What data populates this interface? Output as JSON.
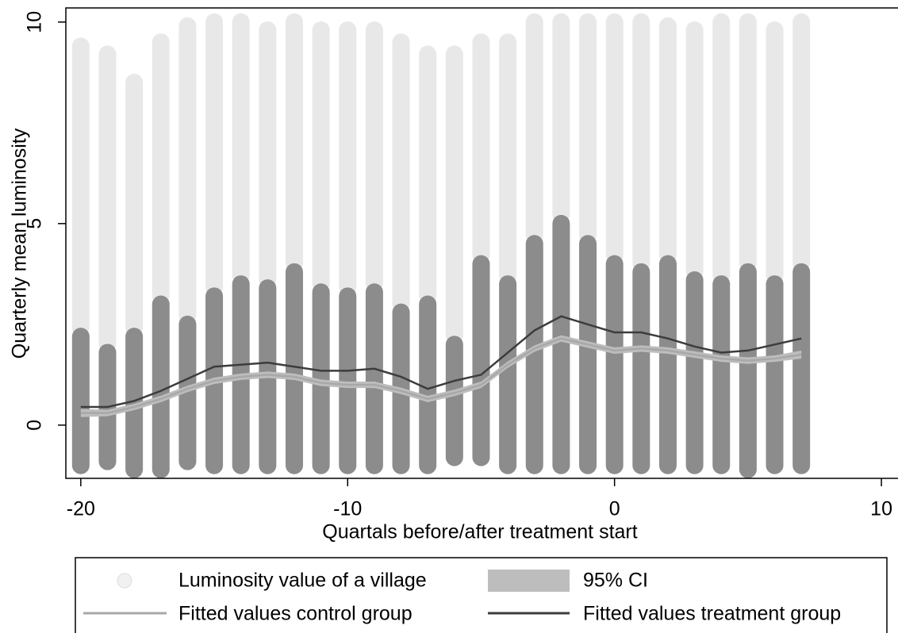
{
  "chart_data": {
    "type": "scatter",
    "x_label": "Quartals before/after treatment start",
    "y_label": "Quarterly mean luminosity",
    "xlim": [
      -20.56,
      10.8
    ],
    "ylim": [
      -1.32,
      10.35
    ],
    "xticks": [
      -20,
      -10,
      0,
      10
    ],
    "yticks": [
      0,
      5,
      10
    ],
    "x": [
      -20,
      -19,
      -18,
      -17,
      -16,
      -15,
      -14,
      -13,
      -12,
      -11,
      -10,
      -9,
      -8,
      -7,
      -6,
      -5,
      -4,
      -3,
      -2,
      -1,
      0,
      1,
      2,
      3,
      4,
      5,
      6,
      7
    ],
    "points": {
      "name": "Luminosity value of a village",
      "color": "#8c8c8c",
      "low": [
        -1.0,
        -0.9,
        -1.1,
        -1.1,
        -0.9,
        -1.0,
        -1.0,
        -1.0,
        -1.0,
        -1.0,
        -1.0,
        -1.0,
        -1.0,
        -1.0,
        -0.8,
        -0.8,
        -1.0,
        -1.0,
        -1.0,
        -1.0,
        -1.0,
        -1.0,
        -1.0,
        -1.0,
        -1.0,
        -1.1,
        -1.0,
        -1.0
      ],
      "high": [
        2.2,
        1.8,
        2.2,
        3.0,
        2.5,
        3.2,
        3.5,
        3.4,
        3.8,
        3.3,
        3.2,
        3.3,
        2.8,
        3.0,
        2.0,
        4.0,
        3.5,
        4.5,
        5.0,
        4.5,
        4.0,
        3.8,
        4.0,
        3.6,
        3.5,
        3.8,
        3.5,
        3.8
      ],
      "max": [
        9.4,
        9.2,
        8.5,
        9.5,
        9.9,
        10,
        10,
        9.8,
        10,
        9.8,
        9.8,
        9.8,
        9.5,
        9.2,
        9.2,
        9.5,
        9.5,
        10,
        10,
        10,
        10,
        10,
        9.9,
        9.8,
        10,
        10,
        9.8,
        10
      ]
    },
    "ci": {
      "name": "95% CI",
      "color": "#bdbdbd",
      "low": [
        0.2,
        0.22,
        0.37,
        0.57,
        0.82,
        1.02,
        1.12,
        1.17,
        1.12,
        0.97,
        0.92,
        0.92,
        0.77,
        0.57,
        0.72,
        0.92,
        1.42,
        1.82,
        2.07,
        1.92,
        1.77,
        1.82,
        1.77,
        1.67,
        1.57,
        1.52,
        1.57,
        1.65
      ],
      "high": [
        0.4,
        0.38,
        0.53,
        0.73,
        0.98,
        1.18,
        1.28,
        1.33,
        1.28,
        1.13,
        1.08,
        1.08,
        0.93,
        0.73,
        0.88,
        1.08,
        1.58,
        1.98,
        2.23,
        2.08,
        1.93,
        1.98,
        1.93,
        1.83,
        1.73,
        1.68,
        1.73,
        1.85
      ]
    },
    "series": [
      {
        "name": "Fitted values control group",
        "color": "#a8a8a8",
        "values": [
          0.3,
          0.3,
          0.45,
          0.65,
          0.9,
          1.1,
          1.2,
          1.25,
          1.2,
          1.05,
          1.0,
          1.0,
          0.85,
          0.65,
          0.8,
          1.0,
          1.5,
          1.9,
          2.15,
          2.0,
          1.85,
          1.9,
          1.85,
          1.75,
          1.65,
          1.6,
          1.65,
          1.75
        ]
      },
      {
        "name": "Fitted values treatment group",
        "color": "#3c3c3c",
        "values": [
          0.45,
          0.45,
          0.6,
          0.85,
          1.15,
          1.45,
          1.5,
          1.55,
          1.45,
          1.35,
          1.35,
          1.4,
          1.2,
          0.9,
          1.1,
          1.25,
          1.8,
          2.35,
          2.7,
          2.5,
          2.3,
          2.3,
          2.15,
          1.95,
          1.8,
          1.85,
          2.0,
          2.15
        ]
      }
    ]
  }
}
